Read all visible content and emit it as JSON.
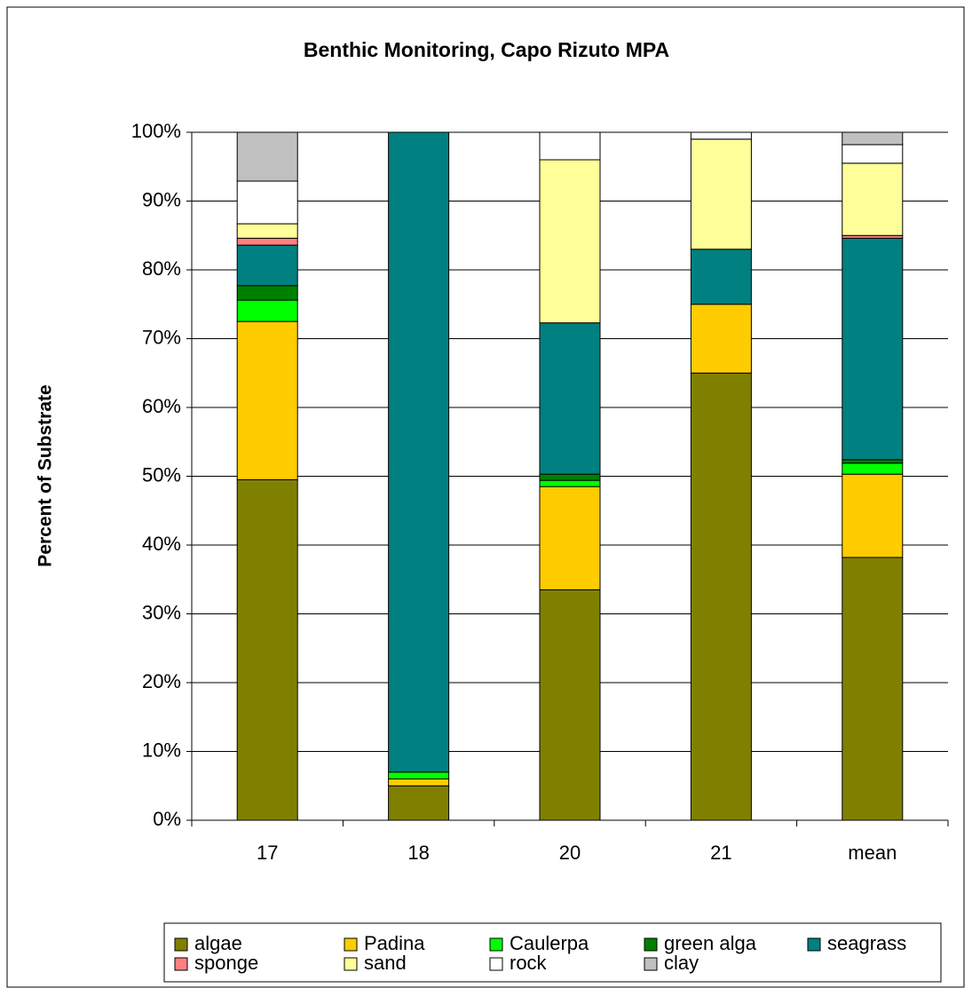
{
  "chart_data": {
    "type": "bar",
    "stacked": true,
    "title": "Benthic Monitoring, Capo Rizuto MPA",
    "y_label": "Percent of Substrate",
    "categories": [
      "17",
      "18",
      "20",
      "21",
      "mean"
    ],
    "series": [
      {
        "name": "algae",
        "color": "#808000",
        "values": [
          49.5,
          5,
          33.5,
          65,
          38.2
        ]
      },
      {
        "name": "Padina",
        "color": "#ffcc00",
        "values": [
          23,
          1,
          15,
          10,
          12.1
        ]
      },
      {
        "name": "Caulerpa",
        "color": "#00ff00",
        "values": [
          3.1,
          1,
          0.9,
          0,
          1.6
        ]
      },
      {
        "name": "green alga",
        "color": "#008000",
        "values": [
          2.1,
          0,
          0.9,
          0,
          0.5
        ]
      },
      {
        "name": "seagrass",
        "color": "#008080",
        "values": [
          5.9,
          93,
          22,
          8,
          32.2
        ]
      },
      {
        "name": "sponge",
        "color": "#ff8080",
        "values": [
          1,
          0,
          0,
          0,
          0.4
        ]
      },
      {
        "name": "sand",
        "color": "#ffff99",
        "values": [
          2.1,
          0,
          23.7,
          16,
          10.5
        ]
      },
      {
        "name": "rock",
        "color": "#ffffff",
        "values": [
          6.2,
          0,
          4,
          1,
          2.7
        ]
      },
      {
        "name": "clay",
        "color": "#c0c0c0",
        "values": [
          7.1,
          0,
          0,
          0,
          1.8
        ]
      }
    ],
    "ylim": [
      0,
      100
    ],
    "yticks": [
      {
        "value": 0,
        "label": "0%"
      },
      {
        "value": 10,
        "label": "10%"
      },
      {
        "value": 20,
        "label": "20%"
      },
      {
        "value": 30,
        "label": "30%"
      },
      {
        "value": 40,
        "label": "40%"
      },
      {
        "value": 50,
        "label": "50%"
      },
      {
        "value": 60,
        "label": "60%"
      },
      {
        "value": 70,
        "label": "70%"
      },
      {
        "value": 80,
        "label": "80%"
      },
      {
        "value": 90,
        "label": "90%"
      },
      {
        "value": 100,
        "label": "100%"
      }
    ],
    "grid": true
  }
}
